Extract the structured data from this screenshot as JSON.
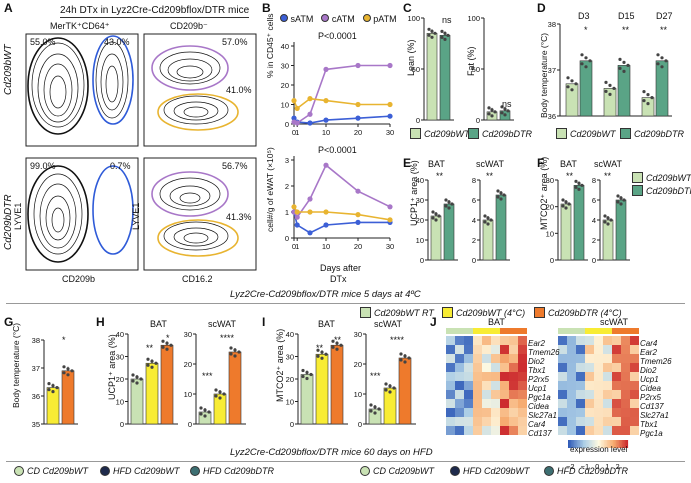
{
  "panel_letters": [
    "A",
    "B",
    "C",
    "D",
    "E",
    "F",
    "G",
    "H",
    "I",
    "J"
  ],
  "A": {
    "title": "24h DTx in Lyz2Cre-Cd209bflox/DTR mice",
    "col1_header": "MerTK⁺CD64⁺",
    "col2_header": "CD209b⁻",
    "row1_label": "Cd209bWT",
    "row2_label": "Cd209bDTR",
    "y_label": "LYVE1",
    "x_label_left": "CD209b",
    "x_label_right": "CD16.2",
    "pct_r1_left_a": "55.0%",
    "pct_r1_left_b": "43.0%",
    "pct_r1_right_a": "57.0%",
    "pct_r1_right_b": "41.0%",
    "pct_r2_left_a": "99.0%",
    "pct_r2_left_b": "0.7%",
    "pct_r2_right_a": "56.7%",
    "pct_r2_right_b": "41.3%"
  },
  "B": {
    "legend": [
      "sATM",
      "cATM",
      "pATM"
    ],
    "colors": {
      "sATM": "#3c5fd6",
      "cATM": "#a877c8",
      "pATM": "#e8b430"
    },
    "top_ylabel": "% in CD45⁺ cells",
    "bottom_ylabel": "cell#/g of eWAT (×10⁵)",
    "pvalue_top": "P<0.0001",
    "pvalue_bottom": "P<0.0001",
    "xlabel_line1": "Days after",
    "xlabel_line2": "DTx",
    "x_ticks": [
      "0",
      "1",
      "10",
      "20",
      "30"
    ]
  },
  "C": {
    "lean_label": "Lean (%)",
    "fat_label": "Fat (%)",
    "ns_a": "ns",
    "ns_b": "ns"
  },
  "D": {
    "days": [
      "D3",
      "D15",
      "D27"
    ],
    "ylabel": "Body temperature (°C)",
    "stars": [
      "*",
      "**",
      "**"
    ]
  },
  "E": {
    "sub_a": "BAT",
    "sub_b": "scWAT",
    "ylabel": "UCP1⁺ area (%)",
    "stars": [
      "**",
      "**"
    ]
  },
  "F": {
    "sub_a": "BAT",
    "sub_b": "scWAT",
    "ylabel": "MTCO2⁺ area (%)",
    "stars": [
      "**",
      "**"
    ]
  },
  "groups_legend": [
    "Cd209bWT",
    "Cd209bDTR"
  ],
  "colors": {
    "wt": "#c9e2b4",
    "dtr": "#5aa486",
    "rt": "#c9e2b4",
    "cold_wt": "#f8ec34",
    "cold_dtr": "#ee7a2c"
  },
  "banner_mid": "Lyz2Cre-Cd209bflox/DTR mice 5 days at 4ºC",
  "legend_mid": [
    "Cd209bWT RT",
    "Cd209bWT (4°C)",
    "Cd209bDTR (4°C)"
  ],
  "G": {
    "ylabel": "Body temperature (°C)",
    "star": "*",
    "ticks": [
      "35",
      "36",
      "37",
      "38"
    ]
  },
  "H": {
    "sub_a": "BAT",
    "sub_b": "scWAT",
    "ylabel": "UCP1⁺ area (%)",
    "stars_a": [
      "**",
      "*"
    ],
    "stars_b": [
      "***",
      "****"
    ]
  },
  "I": {
    "sub_a": "BAT",
    "sub_b": "scWAT",
    "ylabel": "MTCO2⁺ area (%)",
    "stars_a": [
      "**",
      "**"
    ],
    "stars_b": [
      "***",
      "****"
    ]
  },
  "J": {
    "bat_title": "BAT",
    "scwat_title": "scWAT",
    "bat_genes": [
      "Ear2",
      "Tmem26",
      "Dio2",
      "Tbx1",
      "P2rx5",
      "Ucp1",
      "Pgc1a",
      "Cidea",
      "Slc27a1",
      "Car4",
      "Cd137"
    ],
    "scwat_genes": [
      "Car4",
      "Ear2",
      "Tmem26",
      "Dio2",
      "Ucp1",
      "Cidea",
      "P2rx5",
      "Cd137",
      "Slc27a1",
      "Tbx1",
      "Pgc1a"
    ],
    "scale_label": "expression level",
    "scale_ticks": [
      "−2",
      "−1",
      "0",
      "1",
      "2"
    ]
  },
  "banner_bottom": "Lyz2Cre-Cd209bflox/DTR mice 60 days on HFD",
  "bottom_legend": [
    "CD Cd209bWT",
    "HFD Cd209bWT",
    "HFD Cd209bDTR"
  ],
  "bottom_legend_colors": [
    "#c9e2b4",
    "#1e2a4c",
    "#3d6f72"
  ],
  "chart_data": [
    {
      "type": "line",
      "title": "B top",
      "x": [
        0,
        1,
        5,
        10,
        20,
        30
      ],
      "series": [
        {
          "name": "sATM",
          "values": [
            3,
            1,
            0.5,
            2,
            3,
            4
          ]
        },
        {
          "name": "cATM",
          "values": [
            1,
            0.5,
            5,
            28,
            30,
            30
          ]
        },
        {
          "name": "pATM",
          "values": [
            12,
            8,
            13,
            12,
            10,
            10
          ]
        }
      ],
      "ylim": [
        0,
        40
      ],
      "yticks": [
        0,
        10,
        20,
        30,
        40
      ],
      "xlabel": "Days after DTx",
      "ylabel": "% in CD45⁺ cells"
    },
    {
      "type": "line",
      "title": "B bottom",
      "x": [
        0,
        1,
        5,
        10,
        20,
        30
      ],
      "series": [
        {
          "name": "sATM",
          "values": [
            1.0,
            0.5,
            0.2,
            0.5,
            0.6,
            0.6
          ]
        },
        {
          "name": "cATM",
          "values": [
            1.0,
            0.8,
            1.5,
            2.8,
            1.8,
            1.2
          ]
        },
        {
          "name": "pATM",
          "values": [
            1.2,
            1.0,
            1.0,
            1.0,
            0.9,
            0.7
          ]
        }
      ],
      "ylim": [
        0,
        3
      ],
      "yticks": [
        0,
        1,
        2,
        3
      ],
      "xlabel": "Days after DTx",
      "ylabel": "cell#/g of eWAT (×10⁵)"
    },
    {
      "type": "bar",
      "title": "C Lean",
      "categories": [
        "Cd209bWT",
        "Cd209bDTR"
      ],
      "values": [
        85,
        83
      ],
      "ylim": [
        0,
        100
      ],
      "yticks": [
        0,
        50,
        100
      ],
      "ylabel": "Lean (%)"
    },
    {
      "type": "bar",
      "title": "C Fat",
      "categories": [
        "Cd209bWT",
        "Cd209bDTR"
      ],
      "values": [
        8,
        9
      ],
      "ylim": [
        0,
        100
      ],
      "yticks": [
        0,
        50,
        100
      ],
      "ylabel": "Fat (%)"
    },
    {
      "type": "bar",
      "title": "D Body temperature",
      "categories": [
        "D3",
        "D15",
        "D27"
      ],
      "series": [
        {
          "name": "Cd209bWT",
          "values": [
            36.7,
            36.6,
            36.4
          ]
        },
        {
          "name": "Cd209bDTR",
          "values": [
            37.2,
            37.1,
            37.2
          ]
        }
      ],
      "ylim": [
        36,
        38
      ],
      "yticks": [
        36,
        37,
        38
      ],
      "ylabel": "Body temperature (°C)"
    },
    {
      "type": "bar",
      "title": "E BAT",
      "categories": [
        "Cd209bWT",
        "Cd209bDTR"
      ],
      "values": [
        22,
        28
      ],
      "ylim": [
        0,
        40
      ],
      "yticks": [
        0,
        10,
        20,
        30,
        40
      ],
      "ylabel": "UCP1⁺ area (%)"
    },
    {
      "type": "bar",
      "title": "E scWAT",
      "categories": [
        "Cd209bWT",
        "Cd209bDTR"
      ],
      "values": [
        4,
        6.5
      ],
      "ylim": [
        0,
        8
      ],
      "yticks": [
        0,
        2,
        4,
        6,
        8
      ]
    },
    {
      "type": "bar",
      "title": "F BAT",
      "categories": [
        "Cd209bWT",
        "Cd209bDTR"
      ],
      "values": [
        21,
        28
      ],
      "ylim": [
        0,
        30
      ],
      "yticks": [
        0,
        10,
        20,
        30
      ],
      "ylabel": "MTCO2⁺ area (%)"
    },
    {
      "type": "bar",
      "title": "F scWAT",
      "categories": [
        "Cd209bWT",
        "Cd209bDTR"
      ],
      "values": [
        4,
        6
      ],
      "ylim": [
        0,
        8
      ],
      "yticks": [
        0,
        2,
        4,
        6,
        8
      ]
    },
    {
      "type": "bar",
      "title": "G Body temperature",
      "categories": [
        "Cd209bWT (4°C)",
        "Cd209bDTR (4°C)"
      ],
      "values": [
        36.3,
        36.9
      ],
      "ylim": [
        35,
        38
      ],
      "yticks": [
        35,
        36,
        37,
        38
      ],
      "ylabel": "Body temperature (°C)"
    },
    {
      "type": "bar",
      "title": "H BAT",
      "categories": [
        "Cd209bWT RT",
        "Cd209bWT (4°C)",
        "Cd209bDTR (4°C)"
      ],
      "values": [
        20,
        27,
        35
      ],
      "ylim": [
        0,
        40
      ],
      "yticks": [
        0,
        10,
        20,
        30,
        40
      ],
      "ylabel": "UCP1⁺ area (%)"
    },
    {
      "type": "bar",
      "title": "H scWAT",
      "categories": [
        "Cd209bWT RT",
        "Cd209bWT (4°C)",
        "Cd209bDTR (4°C)"
      ],
      "values": [
        4,
        10,
        24
      ],
      "ylim": [
        0,
        30
      ],
      "yticks": [
        0,
        10,
        20,
        30
      ]
    },
    {
      "type": "bar",
      "title": "I BAT",
      "categories": [
        "Cd209bWT RT",
        "Cd209bWT (4°C)",
        "Cd209bDTR (4°C)"
      ],
      "values": [
        22,
        31,
        35
      ],
      "ylim": [
        0,
        40
      ],
      "yticks": [
        0,
        10,
        20,
        30,
        40
      ],
      "ylabel": "MTCO2⁺ area (%)"
    },
    {
      "type": "bar",
      "title": "I scWAT",
      "categories": [
        "Cd209bWT RT",
        "Cd209bWT (4°C)",
        "Cd209bDTR (4°C)"
      ],
      "values": [
        5,
        12,
        22
      ],
      "ylim": [
        0,
        30
      ],
      "yticks": [
        0,
        10,
        20,
        30
      ]
    },
    {
      "type": "heatmap",
      "title": "J BAT",
      "rows": [
        "Ear2",
        "Tmem26",
        "Dio2",
        "Tbx1",
        "P2rx5",
        "Ucp1",
        "Pgc1a",
        "Cidea",
        "Slc27a1",
        "Car4",
        "Cd137"
      ],
      "ncols": 9,
      "clim": [
        -2,
        2
      ]
    },
    {
      "type": "heatmap",
      "title": "J scWAT",
      "rows": [
        "Car4",
        "Ear2",
        "Tmem26",
        "Dio2",
        "Ucp1",
        "Cidea",
        "P2rx5",
        "Cd137",
        "Slc27a1",
        "Tbx1",
        "Pgc1a"
      ],
      "ncols": 9,
      "clim": [
        -2,
        2
      ]
    }
  ]
}
